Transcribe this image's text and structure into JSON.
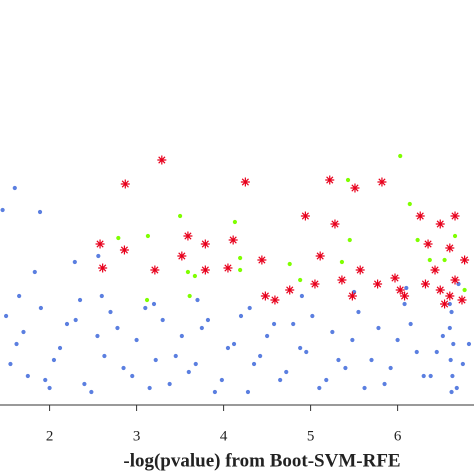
{
  "chart_data": {
    "type": "scatter",
    "x_label": "-log(pvalue) from Boot-SVM-RFE",
    "xlim": [
      1.43,
      6.878
    ],
    "xticks": [
      2,
      3,
      4,
      5,
      6
    ],
    "ylim": [
      0,
      10
    ],
    "series": [
      {
        "color": "#5b7fe0",
        "marker": "dot",
        "x": [
          1.6,
          1.46,
          1.89,
          2.29,
          2.56,
          1.83,
          2.35,
          1.5,
          1.62,
          1.75,
          1.9,
          2.05,
          2.2,
          2.4,
          2.55,
          2.7,
          2.85,
          3.0,
          3.15,
          3.3,
          3.45,
          3.6,
          3.75,
          3.9,
          4.05,
          4.2,
          4.35,
          4.5,
          4.65,
          4.8,
          4.95,
          5.1,
          5.25,
          5.4,
          5.55,
          5.7,
          5.85,
          6.0,
          6.15,
          6.3,
          6.45,
          6.6,
          6.75,
          1.55,
          1.7,
          1.95,
          2.12,
          2.3,
          2.48,
          2.63,
          2.78,
          2.95,
          3.1,
          3.22,
          3.38,
          3.52,
          3.68,
          3.82,
          3.98,
          4.12,
          4.28,
          4.42,
          4.58,
          4.72,
          4.88,
          5.02,
          5.18,
          5.32,
          5.48,
          5.62,
          5.78,
          5.92,
          6.08,
          6.22,
          6.38,
          6.52,
          6.68,
          6.82,
          6.62,
          6.63,
          6.61,
          6.64,
          6.6,
          6.62,
          1.65,
          2.0,
          2.6,
          3.2,
          3.7,
          4.3,
          4.9,
          5.5,
          6.1,
          6.7
        ],
        "y": [
          5.3,
          4.75,
          4.7,
          3.45,
          3.6,
          3.2,
          2.5,
          2.1,
          1.4,
          0.6,
          2.3,
          1.0,
          1.9,
          0.4,
          1.6,
          2.2,
          0.8,
          1.5,
          0.3,
          2.0,
          1.1,
          0.7,
          1.8,
          0.2,
          1.3,
          2.1,
          0.9,
          1.6,
          0.5,
          1.9,
          1.2,
          0.3,
          1.7,
          0.8,
          2.2,
          1.0,
          0.4,
          1.5,
          1.9,
          0.6,
          1.2,
          2.4,
          0.9,
          0.9,
          1.7,
          0.5,
          1.3,
          2.0,
          0.2,
          1.1,
          1.8,
          0.6,
          2.3,
          1.0,
          0.4,
          1.6,
          0.9,
          2.0,
          0.5,
          1.4,
          0.2,
          1.1,
          1.9,
          0.7,
          1.3,
          2.1,
          0.5,
          1.0,
          1.5,
          0.3,
          1.8,
          0.8,
          2.4,
          1.2,
          0.6,
          1.6,
          0.3,
          1.4,
          0.2,
          0.6,
          1.0,
          1.4,
          1.8,
          2.2,
          2.6,
          0.3,
          2.6,
          2.4,
          2.5,
          2.3,
          2.6,
          2.7,
          2.8,
          2.9
        ]
      },
      {
        "color": "#e8001c",
        "marker": "star",
        "x": [
          3.29,
          2.87,
          4.25,
          5.22,
          5.51,
          5.82,
          4.94,
          5.28,
          2.58,
          3.59,
          3.79,
          4.11,
          2.86,
          3.52,
          2.61,
          3.21,
          4.05,
          4.44,
          5.11,
          5.57,
          3.79,
          4.48,
          4.59,
          4.76,
          5.05,
          5.36,
          5.48,
          5.77,
          6.08,
          6.26,
          6.49,
          6.66,
          6.35,
          6.6,
          6.43,
          6.66,
          6.49,
          6.6,
          6.74,
          6.32,
          5.97,
          6.03,
          6.54,
          6.77
        ],
        "y": [
          6.0,
          5.4,
          5.45,
          5.5,
          5.3,
          5.45,
          4.6,
          4.4,
          3.9,
          4.1,
          3.9,
          4.0,
          3.75,
          3.6,
          3.3,
          3.25,
          3.3,
          3.5,
          3.6,
          3.25,
          3.25,
          2.6,
          2.5,
          2.75,
          2.9,
          3.0,
          2.6,
          2.9,
          2.6,
          4.6,
          4.4,
          4.6,
          3.9,
          3.8,
          3.25,
          3.0,
          2.75,
          2.6,
          2.5,
          2.9,
          3.05,
          2.75,
          2.4,
          3.5
        ]
      },
      {
        "color": "#7fff00",
        "marker": "dot",
        "x": [
          6.03,
          5.43,
          3.5,
          4.13,
          3.13,
          2.79,
          4.19,
          3.59,
          3.67,
          3.12,
          4.19,
          4.76,
          5.45,
          4.88,
          5.36,
          6.14,
          6.54,
          6.37,
          6.77,
          6.23,
          6.66,
          3.61
        ],
        "y": [
          6.1,
          5.5,
          4.6,
          4.45,
          4.1,
          4.05,
          3.55,
          3.2,
          3.1,
          2.5,
          3.25,
          3.4,
          4.0,
          3.0,
          3.45,
          4.9,
          3.5,
          3.5,
          2.75,
          4.0,
          4.1,
          2.6
        ]
      }
    ]
  }
}
